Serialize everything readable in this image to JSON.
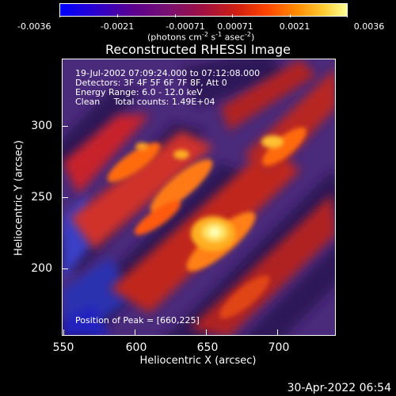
{
  "colorbar": {
    "ticks": [
      "-0.0036",
      "-0.0021",
      "-0.00071",
      "0.00071",
      "0.0021",
      "0.0036"
    ],
    "units_text": "(photons cm",
    "units_exp1": "-2",
    "units_mid": " s",
    "units_exp2": "-1",
    "units_mid2": " asec",
    "units_exp3": "-2",
    "units_end": ")"
  },
  "title": "Reconstructed RHESSI Image",
  "info": {
    "line1": "19-Jul-2002 07:09:24.000 to 07:12:08.000",
    "line2": "Detectors: 3F 4F 5F 6F 7F 8F, Att 0",
    "line3": "Energy Range: 6.0 - 12.0 keV",
    "line4": "Clean     Total counts: 1.49E+04",
    "peak": "Position of Peak = [660,225]"
  },
  "axes": {
    "xlabel": "Heliocentric X (arcsec)",
    "ylabel": "Heliocentric Y (arcsec)",
    "xticks": [
      "550",
      "600",
      "650",
      "700"
    ],
    "yticks": [
      "300",
      "250",
      "200"
    ]
  },
  "date_stamp": "30-Apr-2022 06:54"
}
